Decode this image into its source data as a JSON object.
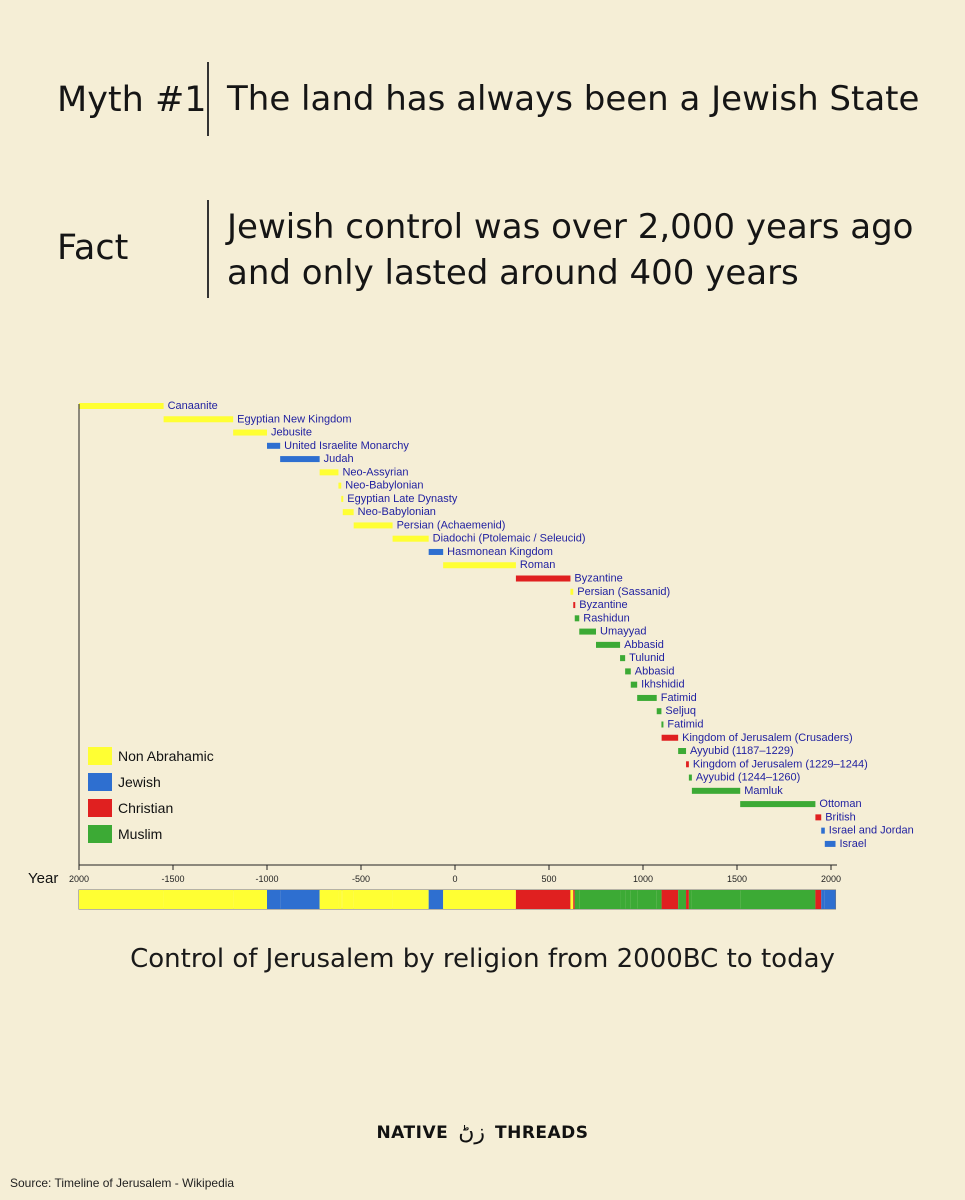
{
  "myth": {
    "label": "Myth #1",
    "text": "The land has always been a Jewish State"
  },
  "fact": {
    "label": "Fact",
    "line1": "Jewish control was over 2,000 years ago",
    "line2": "and only lasted around 400 years"
  },
  "chart_data": {
    "type": "bar",
    "subtype": "timeline-gantt",
    "xlabel": "Year",
    "xlim": [
      -2000,
      2000
    ],
    "xticks": [
      2000,
      -1500,
      -1000,
      -500,
      0,
      500,
      1000,
      1500,
      2000
    ],
    "colors": {
      "Non Abrahamic": "#ffff33",
      "Jewish": "#2e6fd0",
      "Christian": "#e02020",
      "Muslim": "#3caa35"
    },
    "label_color": "#1f1fa0",
    "legend": {
      "placement": "bottom-left",
      "entries": [
        "Non Abrahamic",
        "Jewish",
        "Christian",
        "Muslim"
      ]
    },
    "periods": [
      {
        "name": "Canaanite",
        "start": -2000,
        "end": -1550,
        "religion": "Non Abrahamic"
      },
      {
        "name": "Egyptian New Kingdom",
        "start": -1550,
        "end": -1180,
        "religion": "Non Abrahamic"
      },
      {
        "name": "Jebusite",
        "start": -1180,
        "end": -1000,
        "religion": "Non Abrahamic"
      },
      {
        "name": "United Israelite Monarchy",
        "start": -1000,
        "end": -930,
        "religion": "Jewish"
      },
      {
        "name": "Judah",
        "start": -930,
        "end": -720,
        "religion": "Jewish"
      },
      {
        "name": "Neo-Assyrian",
        "start": -720,
        "end": -620,
        "religion": "Non Abrahamic"
      },
      {
        "name": "Neo-Babylonian",
        "start": -620,
        "end": -605,
        "religion": "Non Abrahamic"
      },
      {
        "name": "Egyptian Late Dynasty",
        "start": -605,
        "end": -597,
        "religion": "Non Abrahamic"
      },
      {
        "name": "Neo-Babylonian",
        "start": -597,
        "end": -539,
        "religion": "Non Abrahamic"
      },
      {
        "name": "Persian (Achaemenid)",
        "start": -539,
        "end": -332,
        "religion": "Non Abrahamic"
      },
      {
        "name": "Diadochi (Ptolemaic / Seleucid)",
        "start": -332,
        "end": -140,
        "religion": "Non Abrahamic"
      },
      {
        "name": "Hasmonean Kingdom",
        "start": -140,
        "end": -63,
        "religion": "Jewish"
      },
      {
        "name": "Roman",
        "start": -63,
        "end": 324,
        "religion": "Non Abrahamic"
      },
      {
        "name": "Byzantine",
        "start": 324,
        "end": 614,
        "religion": "Christian"
      },
      {
        "name": "Persian (Sassanid)",
        "start": 614,
        "end": 629,
        "religion": "Non Abrahamic"
      },
      {
        "name": "Byzantine",
        "start": 629,
        "end": 637,
        "religion": "Christian"
      },
      {
        "name": "Rashidun",
        "start": 637,
        "end": 661,
        "religion": "Muslim"
      },
      {
        "name": "Umayyad",
        "start": 661,
        "end": 750,
        "religion": "Muslim"
      },
      {
        "name": "Abbasid",
        "start": 750,
        "end": 878,
        "religion": "Muslim"
      },
      {
        "name": "Tulunid",
        "start": 878,
        "end": 905,
        "religion": "Muslim"
      },
      {
        "name": "Abbasid",
        "start": 905,
        "end": 935,
        "religion": "Muslim"
      },
      {
        "name": "Ikhshidid",
        "start": 935,
        "end": 969,
        "religion": "Muslim"
      },
      {
        "name": "Fatimid",
        "start": 969,
        "end": 1073,
        "religion": "Muslim"
      },
      {
        "name": "Seljuq",
        "start": 1073,
        "end": 1098,
        "religion": "Muslim"
      },
      {
        "name": "Fatimid",
        "start": 1098,
        "end": 1099,
        "religion": "Muslim"
      },
      {
        "name": "Kingdom of Jerusalem (Crusaders)",
        "start": 1099,
        "end": 1187,
        "religion": "Christian"
      },
      {
        "name": "Ayyubid (1187–1229)",
        "start": 1187,
        "end": 1229,
        "religion": "Muslim"
      },
      {
        "name": "Kingdom of Jerusalem (1229–1244)",
        "start": 1229,
        "end": 1244,
        "religion": "Christian"
      },
      {
        "name": "Ayyubid (1244–1260)",
        "start": 1244,
        "end": 1260,
        "religion": "Muslim"
      },
      {
        "name": "Mamluk",
        "start": 1260,
        "end": 1517,
        "religion": "Muslim"
      },
      {
        "name": "Ottoman",
        "start": 1517,
        "end": 1917,
        "religion": "Muslim"
      },
      {
        "name": "British",
        "start": 1917,
        "end": 1948,
        "religion": "Christian"
      },
      {
        "name": "Israel and Jordan",
        "start": 1948,
        "end": 1967,
        "religion": "Jewish"
      },
      {
        "name": "Israel",
        "start": 1967,
        "end": 2024,
        "religion": "Jewish"
      }
    ]
  },
  "caption": "Control of Jerusalem by religion from 2000BC to today",
  "brand": {
    "left": "NATIVE",
    "mark": "زڻ",
    "right": "THREADS"
  },
  "source": "Source: Timeline of Jerusalem - Wikipedia"
}
